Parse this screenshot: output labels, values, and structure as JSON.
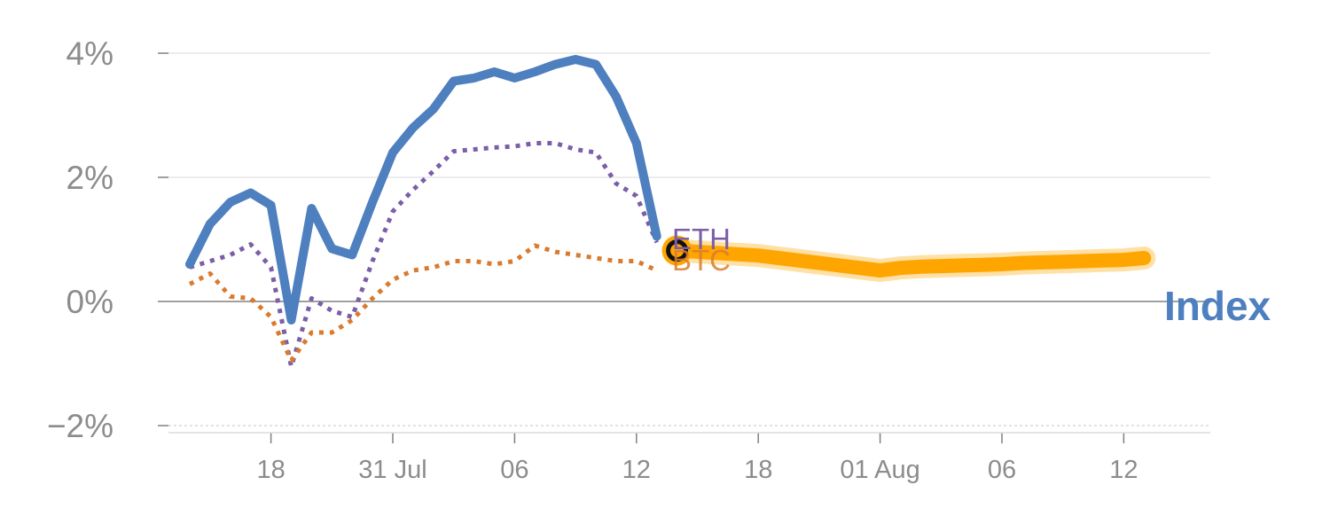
{
  "chart_data": {
    "type": "line",
    "title": "",
    "xlabel": "",
    "ylabel": "",
    "ylim": [
      -2,
      4
    ],
    "y_ticks": [
      {
        "value": 4,
        "label": "4%"
      },
      {
        "value": 2,
        "label": "2%"
      },
      {
        "value": 0,
        "label": "0%"
      },
      {
        "value": -2,
        "label": "−2%"
      }
    ],
    "x_ticks": [
      {
        "x": 4,
        "label": "18"
      },
      {
        "x": 10,
        "label": "31 Jul"
      },
      {
        "x": 16,
        "label": "06"
      },
      {
        "x": 22,
        "label": "12"
      },
      {
        "x": 28,
        "label": "18"
      },
      {
        "x": 34,
        "label": "01 Aug"
      },
      {
        "x": 40,
        "label": "06"
      },
      {
        "x": 46,
        "label": "12"
      }
    ],
    "grid": true,
    "series": [
      {
        "name": "Index",
        "color": "#4e7fbf",
        "style": "solid",
        "x": [
          0,
          1,
          2,
          3,
          4,
          5,
          6,
          7,
          8,
          9,
          10,
          11,
          12,
          13,
          14,
          15,
          16,
          17,
          18,
          19,
          20,
          21,
          22,
          23
        ],
        "y": [
          0.6,
          1.25,
          1.6,
          1.75,
          1.55,
          -0.3,
          1.5,
          0.85,
          0.75,
          1.6,
          2.4,
          2.8,
          3.1,
          3.55,
          3.6,
          3.7,
          3.6,
          3.7,
          3.82,
          3.9,
          3.82,
          3.3,
          2.55,
          1.05
        ]
      },
      {
        "name": "ETH",
        "color": "#7b5ea7",
        "style": "dotted",
        "x": [
          0,
          1,
          2,
          3,
          4,
          5,
          6,
          7,
          8,
          9,
          10,
          11,
          12,
          13,
          14,
          15,
          16,
          17,
          18,
          19,
          20,
          21,
          22,
          23
        ],
        "y": [
          0.55,
          0.65,
          0.75,
          0.92,
          0.55,
          -1.05,
          0.05,
          -0.15,
          -0.25,
          0.65,
          1.45,
          1.8,
          2.1,
          2.42,
          2.45,
          2.48,
          2.5,
          2.55,
          2.55,
          2.45,
          2.4,
          1.9,
          1.7,
          0.95
        ]
      },
      {
        "name": "BTC",
        "color": "#d97b2f",
        "style": "dotted",
        "x": [
          0,
          1,
          2,
          3,
          4,
          5,
          6,
          7,
          8,
          9,
          10,
          11,
          12,
          13,
          14,
          15,
          16,
          17,
          18,
          19,
          20,
          21,
          22,
          23
        ],
        "y": [
          0.28,
          0.45,
          0.08,
          0.05,
          -0.25,
          -0.95,
          -0.5,
          -0.5,
          -0.3,
          0.05,
          0.35,
          0.5,
          0.55,
          0.65,
          0.65,
          0.6,
          0.65,
          0.9,
          0.8,
          0.75,
          0.7,
          0.65,
          0.65,
          0.5
        ]
      },
      {
        "name": "",
        "color": "#ffa500",
        "style": "forecast",
        "x": [
          24,
          25,
          26,
          27,
          28,
          29,
          30,
          31,
          32,
          33,
          34,
          35,
          36,
          37,
          38,
          39,
          40,
          41,
          42,
          43,
          44,
          45,
          46,
          47
        ],
        "y": [
          0.82,
          0.8,
          0.78,
          0.76,
          0.74,
          0.7,
          0.66,
          0.62,
          0.58,
          0.54,
          0.5,
          0.54,
          0.56,
          0.57,
          0.58,
          0.59,
          0.6,
          0.62,
          0.63,
          0.64,
          0.65,
          0.66,
          0.67,
          0.7
        ]
      }
    ],
    "current_point": {
      "x": 24,
      "y": 0.82
    },
    "series_end_labels": [
      {
        "text": "ETH",
        "color": "#7b5ea7"
      },
      {
        "text": "BTC",
        "color": "#d97b2f"
      },
      {
        "text": "Index",
        "color": "#4e7fbf"
      }
    ]
  }
}
